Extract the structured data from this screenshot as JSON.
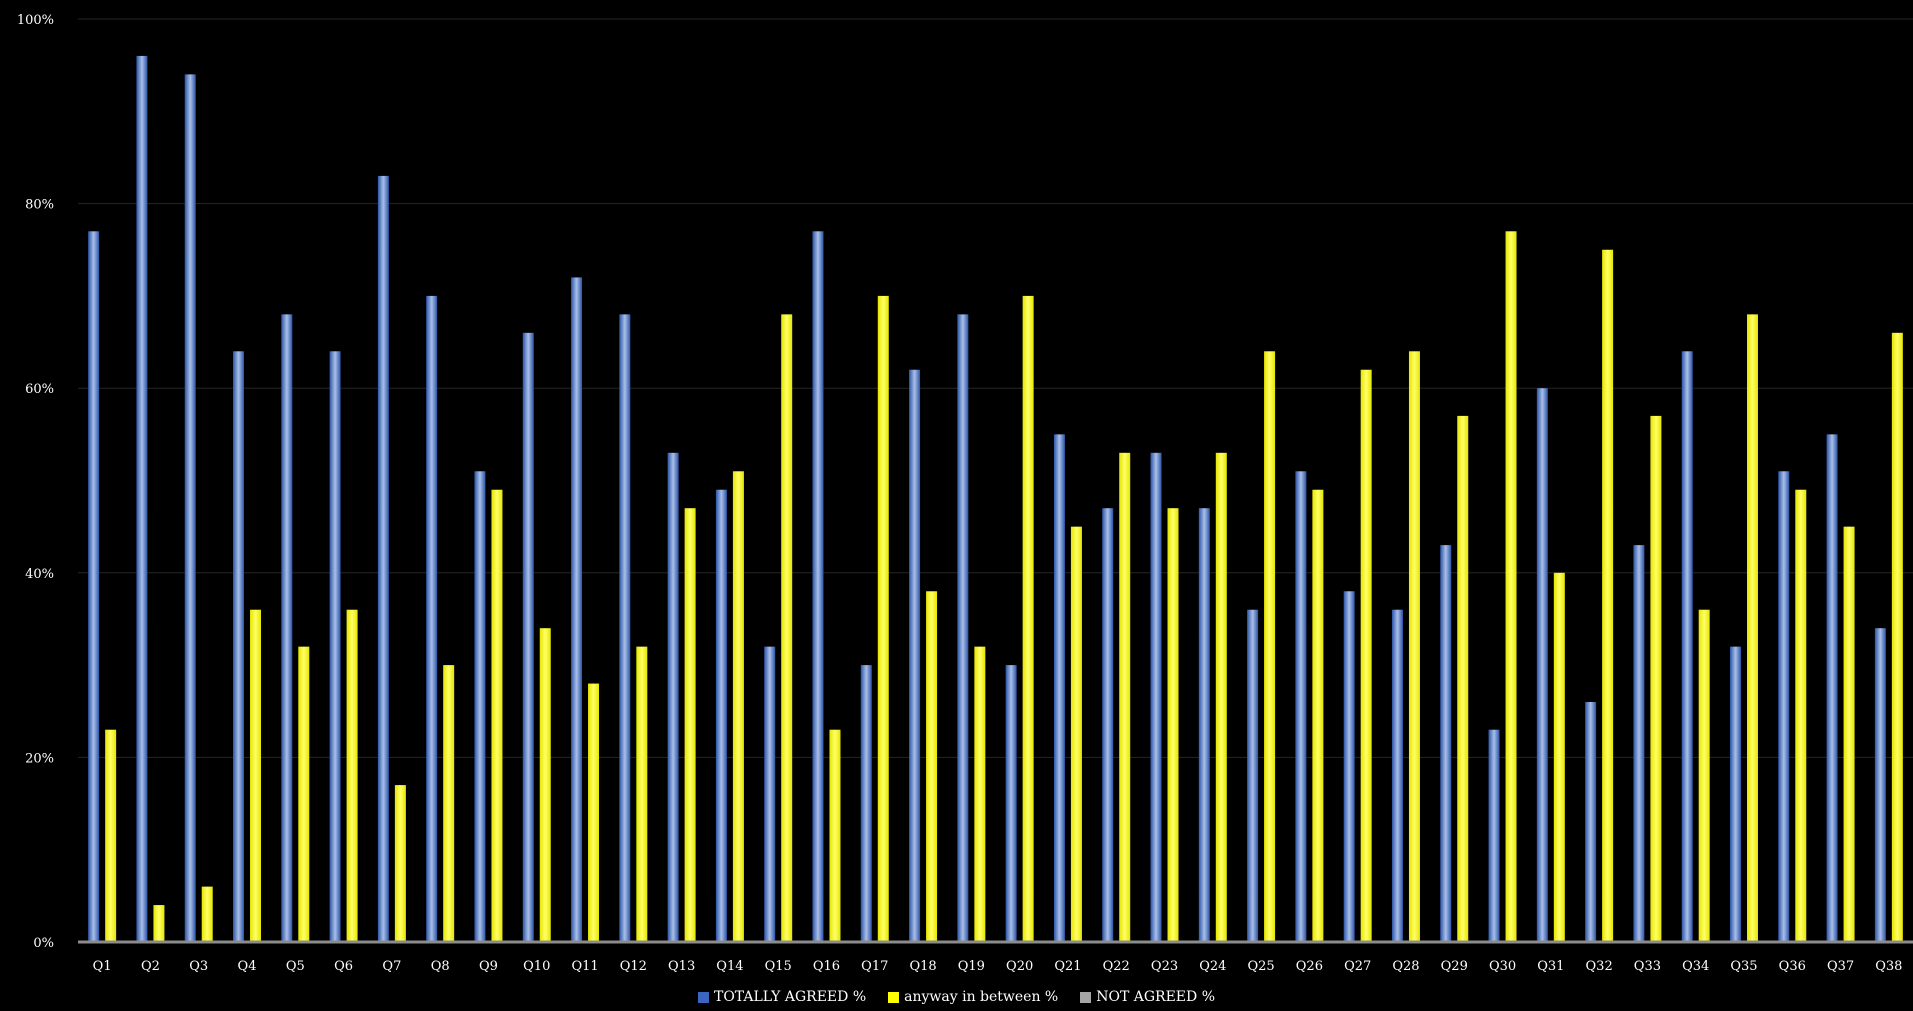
{
  "chart_data": {
    "type": "bar",
    "title": "",
    "xlabel": "",
    "ylabel": "",
    "ylim": [
      0,
      100
    ],
    "yticks": [
      0,
      20,
      40,
      60,
      80,
      100
    ],
    "ytick_labels": [
      "0%",
      "20%",
      "40%",
      "60%",
      "80%",
      "100%"
    ],
    "grid": true,
    "legend_position": "bottom",
    "categories": [
      "Q1",
      "Q2",
      "Q3",
      "Q4",
      "Q5",
      "Q6",
      "Q7",
      "Q8",
      "Q9",
      "Q10",
      "Q11",
      "Q12",
      "Q13",
      "Q14",
      "Q15",
      "Q16",
      "Q17",
      "Q18",
      "Q19",
      "Q20",
      "Q21",
      "Q22",
      "Q23",
      "Q24",
      "Q25",
      "Q26",
      "Q27",
      "Q28",
      "Q29",
      "Q30",
      "Q31",
      "Q32",
      "Q33",
      "Q34",
      "Q35",
      "Q36",
      "Q37",
      "Q38"
    ],
    "series": [
      {
        "name": "TOTALLY AGREED %",
        "color": "#4a76c8",
        "values": [
          77,
          96,
          94,
          64,
          68,
          64,
          83,
          70,
          51,
          66,
          72,
          68,
          53,
          49,
          32,
          77,
          30,
          62,
          68,
          30,
          55,
          47,
          53,
          47,
          36,
          51,
          38,
          36,
          43,
          23,
          60,
          26,
          43,
          64,
          32,
          51,
          55,
          34
        ]
      },
      {
        "name": "anyway in between %",
        "color": "#ffff00",
        "values": [
          23,
          4,
          6,
          36,
          32,
          36,
          17,
          30,
          49,
          34,
          28,
          32,
          47,
          51,
          68,
          23,
          70,
          38,
          32,
          70,
          45,
          53,
          47,
          53,
          64,
          49,
          62,
          64,
          57,
          77,
          40,
          75,
          57,
          36,
          68,
          49,
          45,
          66
        ]
      },
      {
        "name": "NOT AGREED %",
        "color": "#a6a6a6",
        "values": [
          0,
          0,
          0,
          0,
          0,
          0,
          0,
          0,
          0,
          0,
          0,
          0,
          0,
          0,
          0,
          0,
          0,
          0,
          0,
          0,
          0,
          0,
          0,
          0,
          0,
          0,
          0,
          0,
          0,
          0,
          0,
          0,
          0,
          0,
          0,
          0,
          0,
          0
        ]
      }
    ]
  }
}
